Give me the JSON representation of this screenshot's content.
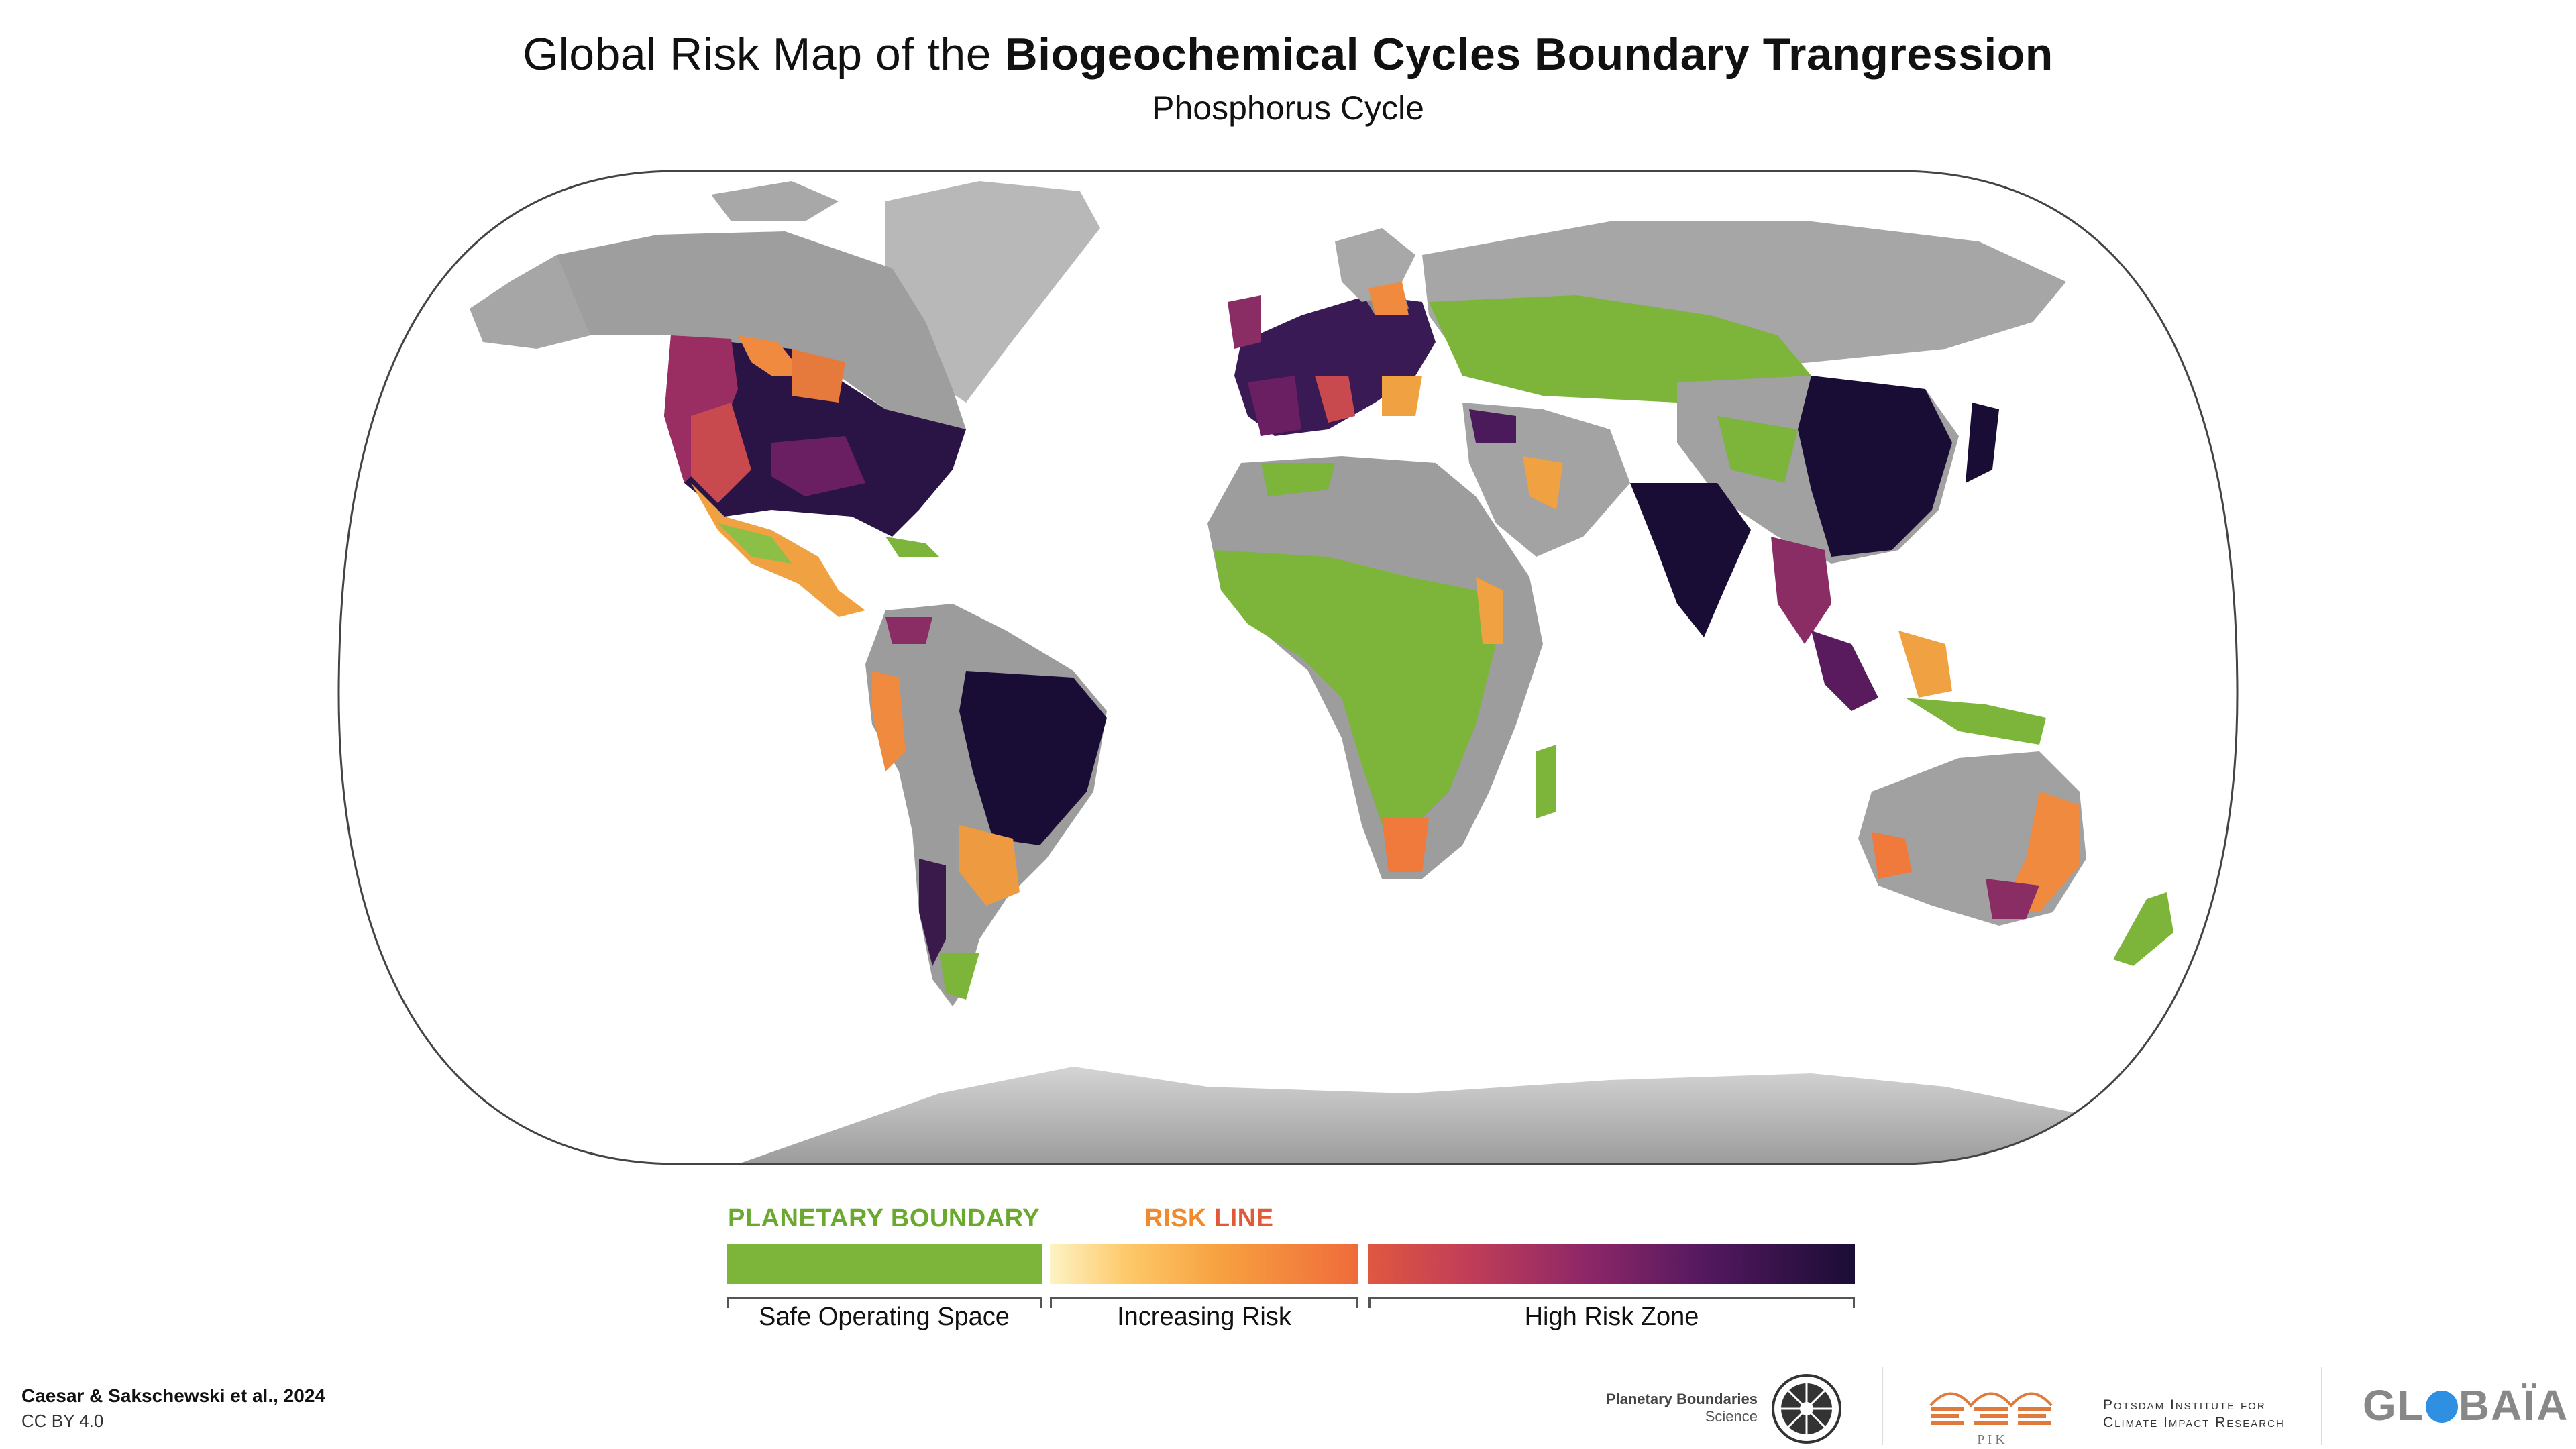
{
  "header": {
    "title_regular": "Global Risk Map of the ",
    "title_bold": "Biogeochemical Cycles Boundary Trangression",
    "subtitle": "Phosphorus Cycle"
  },
  "legend": {
    "planetary_boundary": "PLANETARY BOUNDARY",
    "risk_word": "RISK",
    "line_word": "LINE",
    "safe_label": "Safe Operating Space",
    "increasing_label": "Increasing Risk",
    "high_label": "High Risk Zone"
  },
  "credits": {
    "authors": "Caesar & Sakschewski et al., 2024",
    "license": "CC BY 4.0"
  },
  "logos": {
    "pbs_line1": "Planetary Boundaries",
    "pbs_line2": "Science",
    "pik_line1": "Potsdam Institute for",
    "pik_line2": "Climate Impact Research",
    "pik_acronym": "P I K",
    "globaia_left": "GL",
    "globaia_right": "BAÏA"
  },
  "colors": {
    "safe": "#7db43a",
    "risk_low": "#fdc969",
    "risk_mid": "#f7a140",
    "risk_high": "#ef6b3a",
    "high_zone": "#8d2767",
    "high_max": "#1a0d35",
    "land_neutral": "#9a9a9a"
  }
}
